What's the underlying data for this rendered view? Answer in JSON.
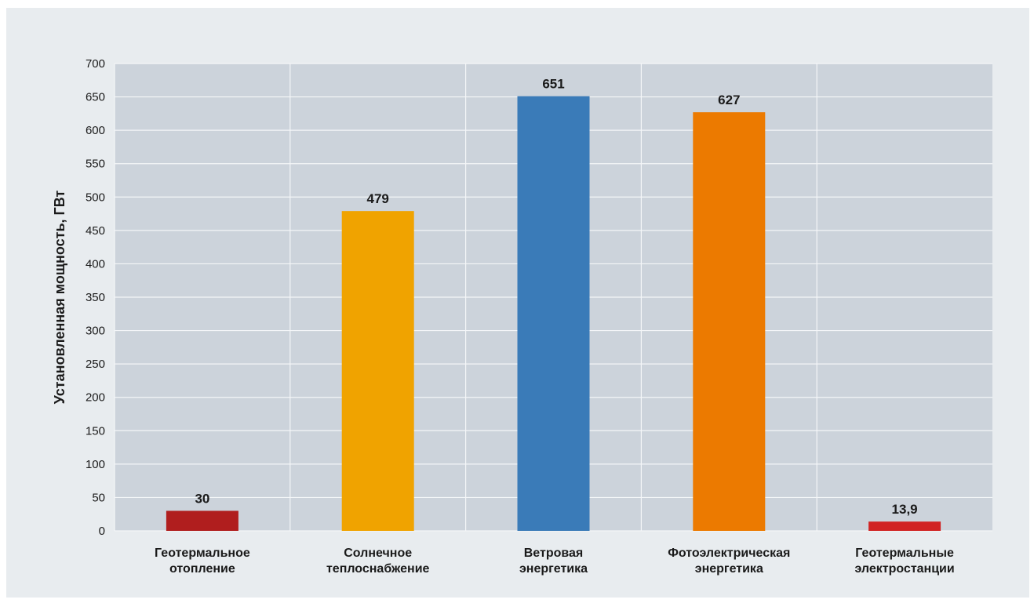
{
  "chart_data": {
    "type": "bar",
    "title": "",
    "xlabel": "",
    "ylabel": "Установленная мощность, ГВт",
    "ylim": [
      0,
      700
    ],
    "yticks": [
      0,
      50,
      100,
      150,
      200,
      250,
      300,
      350,
      400,
      450,
      500,
      550,
      600,
      650,
      700
    ],
    "grid": true,
    "categories": [
      [
        "Геотермальное",
        "отопление"
      ],
      [
        "Солнечное",
        "теплоснабжение"
      ],
      [
        "Ветровая",
        "энергетика"
      ],
      [
        "Фотоэлектрическая",
        "энергетика"
      ],
      [
        "Геотермальные",
        "электростанции"
      ]
    ],
    "values": [
      30,
      479,
      651,
      627,
      13.9
    ],
    "value_labels": [
      "30",
      "479",
      "651",
      "627",
      "13,9"
    ],
    "colors": [
      "#b01e1e",
      "#f0a300",
      "#3a7bb8",
      "#ec7a00",
      "#d12323"
    ],
    "plot_background": "#ccd3db",
    "page_background": "#e8ecef"
  }
}
